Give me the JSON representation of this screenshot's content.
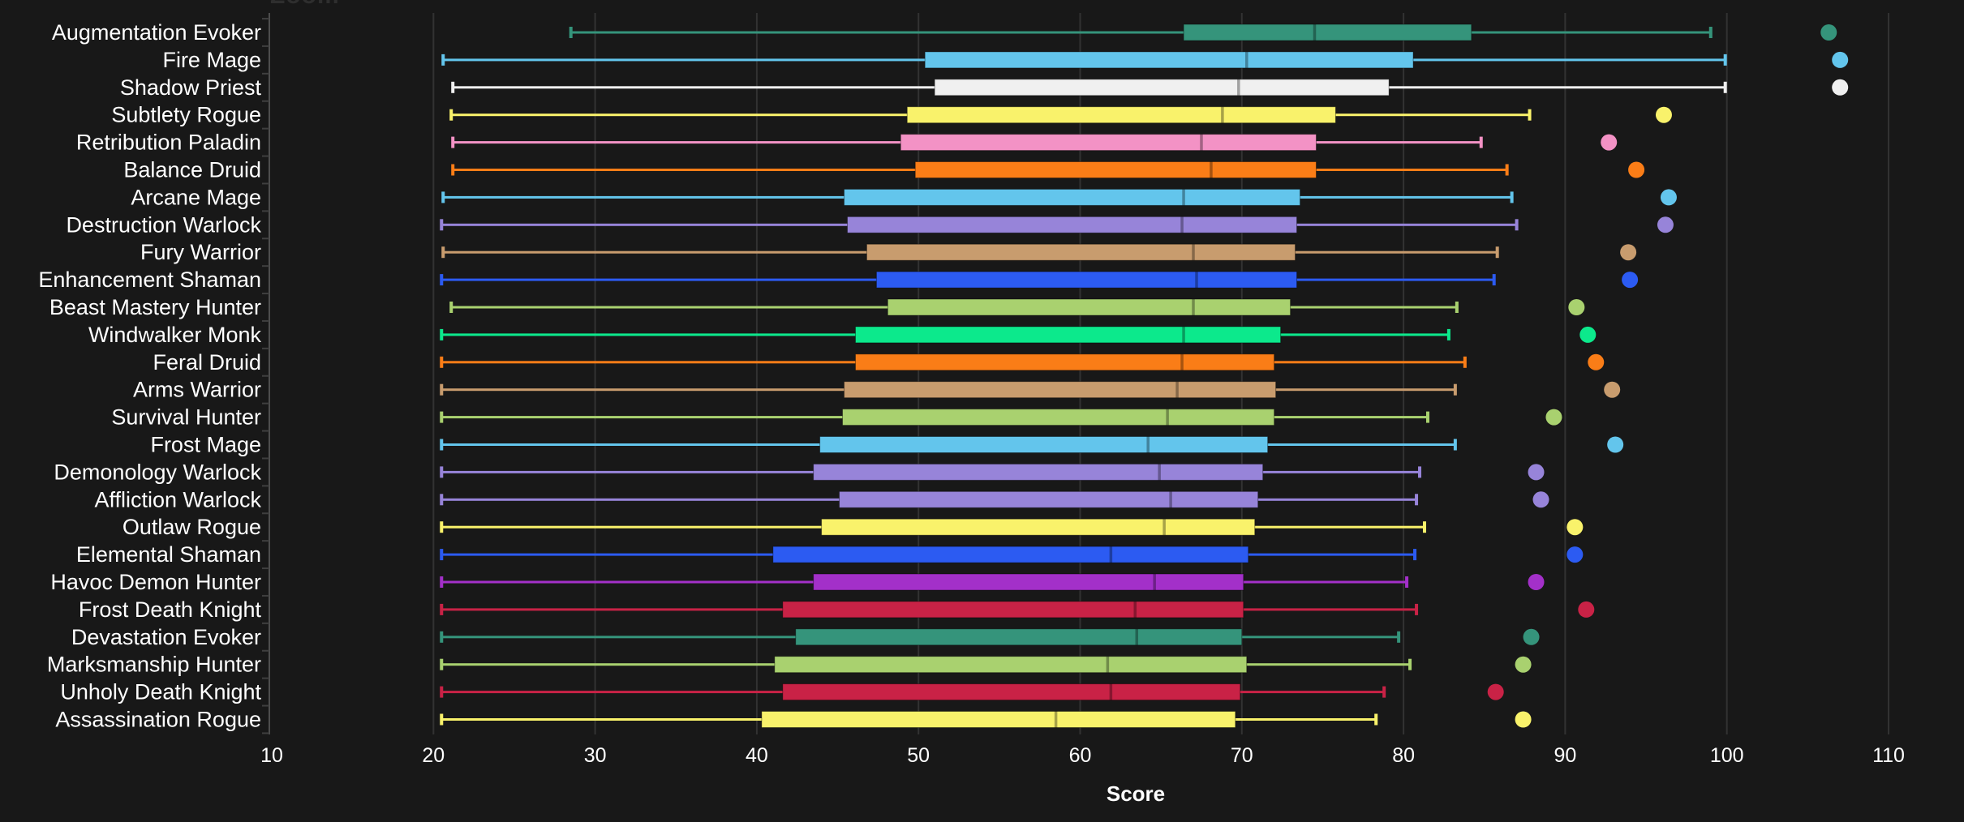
{
  "title_fragment": "Zoom",
  "colors": {
    "background": "#181818",
    "grid": "#323232",
    "spine": "#4d4d4d",
    "axis_tick": "#3f3f3f",
    "text": "#ffffff",
    "title_fragment": "#2e2e2e",
    "box_edge": "rgba(0,0,0,0.4)",
    "median_line": "rgba(0,0,0,0.33)"
  },
  "chart_data": {
    "type": "boxplot",
    "orientation": "horizontal",
    "xlabel": "Score",
    "xlim": [
      10,
      110
    ],
    "x_ticks": [
      10,
      20,
      30,
      40,
      50,
      60,
      70,
      80,
      90,
      100,
      110
    ],
    "grid": true,
    "legend": "none",
    "rows": [
      {
        "label": "Augmentation Evoker",
        "color": "#35947B",
        "low": 28.5,
        "q1": 66.4,
        "median": 74.5,
        "q3": 84.2,
        "high": 99.0,
        "outlier": 106.3
      },
      {
        "label": "Fire Mage",
        "color": "#63C5EC",
        "low": 20.6,
        "q1": 50.4,
        "median": 70.3,
        "q3": 80.6,
        "high": 99.9,
        "outlier": 107.0
      },
      {
        "label": "Shadow Priest",
        "color": "#F0F0F0",
        "low": 21.2,
        "q1": 51.0,
        "median": 69.8,
        "q3": 79.1,
        "high": 99.9,
        "outlier": 107.0
      },
      {
        "label": "Subtlety Rogue",
        "color": "#F9F26B",
        "low": 21.1,
        "q1": 49.3,
        "median": 68.8,
        "q3": 75.8,
        "high": 87.8,
        "outlier": 96.1
      },
      {
        "label": "Retribution Paladin",
        "color": "#F392C5",
        "low": 21.2,
        "q1": 48.9,
        "median": 67.5,
        "q3": 74.6,
        "high": 84.8,
        "outlier": 92.7
      },
      {
        "label": "Balance Druid",
        "color": "#FA7D17",
        "low": 21.2,
        "q1": 49.8,
        "median": 68.1,
        "q3": 74.6,
        "high": 86.4,
        "outlier": 94.4
      },
      {
        "label": "Arcane Mage",
        "color": "#63C5EC",
        "low": 20.6,
        "q1": 45.4,
        "median": 66.4,
        "q3": 73.6,
        "high": 86.7,
        "outlier": 96.4
      },
      {
        "label": "Destruction Warlock",
        "color": "#9784D9",
        "low": 20.5,
        "q1": 45.6,
        "median": 66.3,
        "q3": 73.4,
        "high": 87.0,
        "outlier": 96.2
      },
      {
        "label": "Fury Warrior",
        "color": "#C89C6E",
        "low": 20.6,
        "q1": 46.8,
        "median": 67.0,
        "q3": 73.3,
        "high": 85.8,
        "outlier": 93.9
      },
      {
        "label": "Enhancement Shaman",
        "color": "#2C5BF2",
        "low": 20.5,
        "q1": 47.4,
        "median": 67.2,
        "q3": 73.4,
        "high": 85.6,
        "outlier": 94.0
      },
      {
        "label": "Beast Mastery Hunter",
        "color": "#A9D16F",
        "low": 21.1,
        "q1": 48.1,
        "median": 67.0,
        "q3": 73.0,
        "high": 83.3,
        "outlier": 90.7
      },
      {
        "label": "Windwalker Monk",
        "color": "#0CE98C",
        "low": 20.5,
        "q1": 46.1,
        "median": 66.4,
        "q3": 72.4,
        "high": 82.8,
        "outlier": 91.4
      },
      {
        "label": "Feral Druid",
        "color": "#FA7D17",
        "low": 20.5,
        "q1": 46.1,
        "median": 66.3,
        "q3": 72.0,
        "high": 83.8,
        "outlier": 91.9
      },
      {
        "label": "Arms Warrior",
        "color": "#C89C6E",
        "low": 20.5,
        "q1": 45.4,
        "median": 66.0,
        "q3": 72.1,
        "high": 83.2,
        "outlier": 92.9
      },
      {
        "label": "Survival Hunter",
        "color": "#A9D16F",
        "low": 20.5,
        "q1": 45.3,
        "median": 65.4,
        "q3": 72.0,
        "high": 81.5,
        "outlier": 89.3
      },
      {
        "label": "Frost Mage",
        "color": "#63C5EC",
        "low": 20.5,
        "q1": 43.9,
        "median": 64.2,
        "q3": 71.6,
        "high": 83.2,
        "outlier": 93.1
      },
      {
        "label": "Demonology Warlock",
        "color": "#9784D9",
        "low": 20.5,
        "q1": 43.5,
        "median": 64.9,
        "q3": 71.3,
        "high": 81.0,
        "outlier": 88.2
      },
      {
        "label": "Affliction Warlock",
        "color": "#9784D9",
        "low": 20.5,
        "q1": 45.1,
        "median": 65.6,
        "q3": 71.0,
        "high": 80.8,
        "outlier": 88.5
      },
      {
        "label": "Outlaw Rogue",
        "color": "#F9F26B",
        "low": 20.5,
        "q1": 44.0,
        "median": 65.2,
        "q3": 70.8,
        "high": 81.3,
        "outlier": 90.6
      },
      {
        "label": "Elemental Shaman",
        "color": "#2C5BF2",
        "low": 20.5,
        "q1": 41.0,
        "median": 61.9,
        "q3": 70.4,
        "high": 80.7,
        "outlier": 90.6
      },
      {
        "label": "Havoc Demon Hunter",
        "color": "#A330C9",
        "low": 20.5,
        "q1": 43.5,
        "median": 64.6,
        "q3": 70.1,
        "high": 80.2,
        "outlier": 88.2
      },
      {
        "label": "Frost Death Knight",
        "color": "#C92246",
        "low": 20.5,
        "q1": 41.6,
        "median": 63.4,
        "q3": 70.1,
        "high": 80.8,
        "outlier": 91.3
      },
      {
        "label": "Devastation Evoker",
        "color": "#35947B",
        "low": 20.5,
        "q1": 42.4,
        "median": 63.5,
        "q3": 70.0,
        "high": 79.7,
        "outlier": 87.9
      },
      {
        "label": "Marksmanship Hunter",
        "color": "#A9D16F",
        "low": 20.5,
        "q1": 41.1,
        "median": 61.7,
        "q3": 70.3,
        "high": 80.4,
        "outlier": 87.4
      },
      {
        "label": "Unholy Death Knight",
        "color": "#C92246",
        "low": 20.5,
        "q1": 41.6,
        "median": 61.9,
        "q3": 69.9,
        "high": 78.8,
        "outlier": 85.7
      },
      {
        "label": "Assassination Rogue",
        "color": "#F9F26B",
        "low": 20.5,
        "q1": 40.3,
        "median": 58.5,
        "q3": 69.6,
        "high": 78.3,
        "outlier": 87.4
      }
    ]
  }
}
